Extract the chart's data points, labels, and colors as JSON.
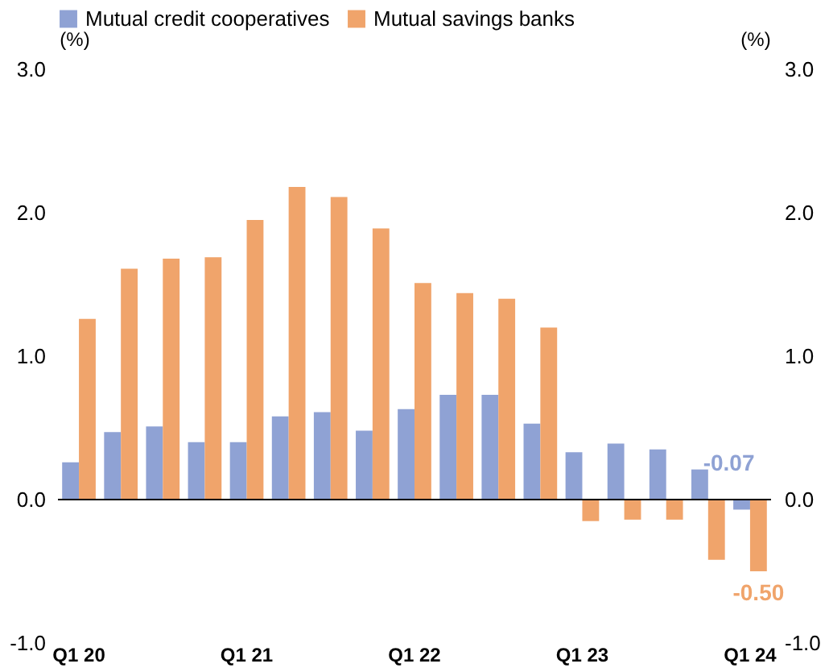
{
  "chart_data": {
    "type": "bar",
    "ylabel": "(%)",
    "y2label": "(%)",
    "categories": [
      "Q1 20",
      null,
      null,
      null,
      "Q1 21",
      null,
      null,
      null,
      "Q1 22",
      null,
      null,
      null,
      "Q1 23",
      null,
      null,
      null,
      "Q1 24"
    ],
    "series": [
      {
        "name": "Mutual credit cooperatives",
        "color": "#8fa2d4",
        "values": [
          0.26,
          0.47,
          0.51,
          0.4,
          0.4,
          0.58,
          0.61,
          0.48,
          0.63,
          0.73,
          0.73,
          0.53,
          0.33,
          0.39,
          0.35,
          0.21,
          -0.07
        ],
        "value_labels": [
          null,
          null,
          null,
          null,
          null,
          null,
          null,
          null,
          null,
          null,
          null,
          null,
          null,
          null,
          null,
          null,
          "-0.07"
        ]
      },
      {
        "name": "Mutual savings banks",
        "color": "#f0a46b",
        "values": [
          1.26,
          1.61,
          1.68,
          1.69,
          1.95,
          2.18,
          2.11,
          1.89,
          1.51,
          1.44,
          1.4,
          1.2,
          -0.15,
          -0.14,
          -0.14,
          -0.42,
          -0.5
        ],
        "value_labels": [
          null,
          null,
          null,
          null,
          null,
          null,
          null,
          null,
          null,
          null,
          null,
          null,
          null,
          null,
          null,
          null,
          "-0.50"
        ]
      }
    ],
    "ylim": [
      -1,
      3
    ],
    "yticks": [
      {
        "value": -1,
        "label": "-1.0"
      },
      {
        "value": 0,
        "label": "0.0"
      },
      {
        "value": 1,
        "label": "1.0"
      },
      {
        "value": 2,
        "label": "2.0"
      },
      {
        "value": 3,
        "label": "3.0"
      }
    ],
    "y2lim": [
      -1,
      3
    ],
    "y2ticks": [
      {
        "value": -1,
        "label": "-1.0"
      },
      {
        "value": 0,
        "label": "0.0"
      },
      {
        "value": 1,
        "label": "1.0"
      },
      {
        "value": 2,
        "label": "2.0"
      },
      {
        "value": 3,
        "label": "3.0"
      }
    ],
    "ref_lines": [
      {
        "axis": "y",
        "value": 0
      }
    ],
    "grid": false,
    "legend": "top left"
  }
}
